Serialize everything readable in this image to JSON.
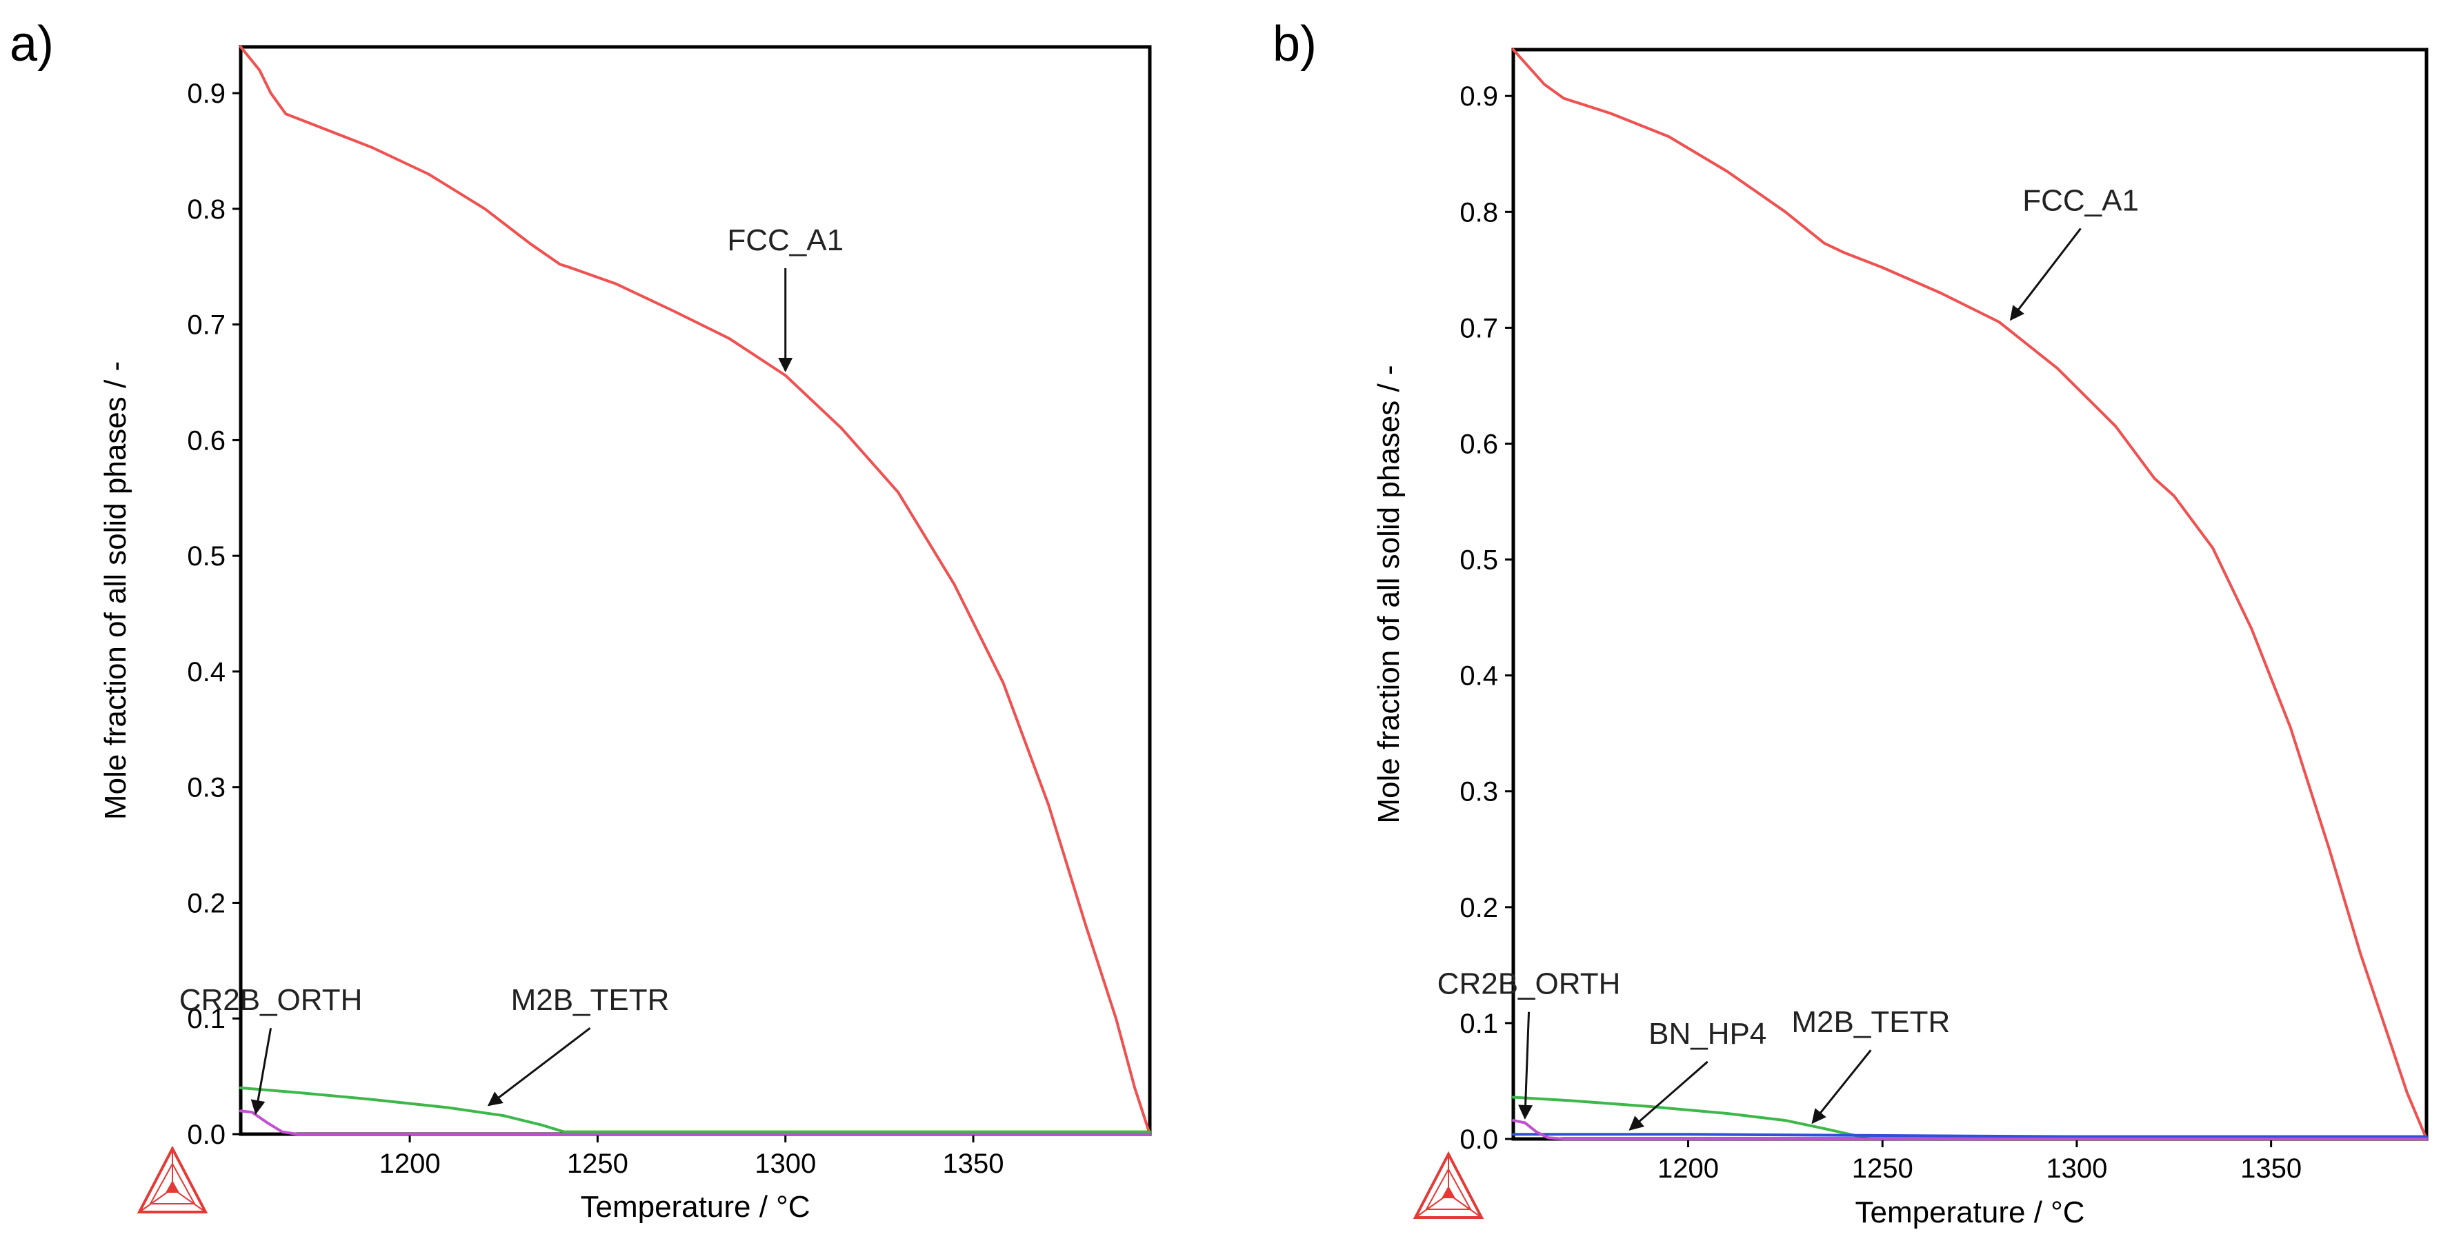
{
  "chart_data": [
    {
      "panel_label": "a)",
      "type": "line",
      "xlabel": "Temperature / °C",
      "ylabel": "Mole fraction of all solid phases / -",
      "xlim": [
        1155,
        1397
      ],
      "ylim": [
        0,
        0.94
      ],
      "xticks": [
        1200,
        1250,
        1300,
        1350
      ],
      "xtick_labels": [
        "1200",
        "1250",
        "1300",
        "1350"
      ],
      "yticks": [
        0,
        0.1,
        0.2,
        0.3,
        0.4,
        0.5,
        0.6,
        0.7,
        0.8,
        0.9
      ],
      "ytick_labels": [
        "0.0",
        "0.1",
        "0.2",
        "0.3",
        "0.4",
        "0.5",
        "0.6",
        "0.7",
        "0.8",
        "0.9"
      ],
      "series": [
        {
          "name": "FCC_A1",
          "color": "#f05050",
          "x": [
            1155,
            1160,
            1163,
            1167,
            1175,
            1190,
            1205,
            1220,
            1232,
            1240,
            1242,
            1255,
            1270,
            1285,
            1300,
            1315,
            1330,
            1345,
            1358,
            1370,
            1380,
            1388,
            1393,
            1397
          ],
          "y": [
            0.94,
            0.92,
            0.9,
            0.882,
            0.872,
            0.853,
            0.83,
            0.8,
            0.77,
            0.752,
            0.75,
            0.735,
            0.712,
            0.688,
            0.656,
            0.61,
            0.555,
            0.475,
            0.39,
            0.285,
            0.18,
            0.1,
            0.04,
            0.0
          ]
        },
        {
          "name": "M2B_TETR",
          "color": "#3cb84a",
          "x": [
            1155,
            1170,
            1190,
            1210,
            1225,
            1235,
            1241,
            1250,
            1300,
            1350,
            1397
          ],
          "y": [
            0.04,
            0.036,
            0.03,
            0.023,
            0.016,
            0.008,
            0.002,
            0.002,
            0.002,
            0.002,
            0.002
          ]
        },
        {
          "name": "CR2B_ORTH",
          "color": "#c050d0",
          "x": [
            1155,
            1158,
            1162,
            1166,
            1170,
            1200,
            1300,
            1397
          ],
          "y": [
            0.02,
            0.019,
            0.01,
            0.002,
            0.0,
            0.0,
            0.0,
            0.0
          ]
        }
      ],
      "annotations": [
        {
          "text": "FCC_A1",
          "tx": 1300,
          "ty": 0.757,
          "ax": 1300,
          "ay": 0.66
        },
        {
          "text": "M2B_TETR",
          "tx": 1248,
          "ty": 0.1,
          "ax": 1221,
          "ay": 0.025
        },
        {
          "text": "CR2B_ORTH",
          "tx": 1163,
          "ty": 0.1,
          "ax": 1159,
          "ay": 0.018
        }
      ]
    },
    {
      "panel_label": "b)",
      "type": "line",
      "xlabel": "Temperature / °C",
      "ylabel": "Mole fraction of all solid phases / -",
      "xlim": [
        1155,
        1390
      ],
      "ylim": [
        0,
        0.94
      ],
      "xticks": [
        1200,
        1250,
        1300,
        1350
      ],
      "xtick_labels": [
        "1200",
        "1250",
        "1300",
        "1350"
      ],
      "yticks": [
        0,
        0.1,
        0.2,
        0.3,
        0.4,
        0.5,
        0.6,
        0.7,
        0.8,
        0.9
      ],
      "ytick_labels": [
        "0.0",
        "0.1",
        "0.2",
        "0.3",
        "0.4",
        "0.5",
        "0.6",
        "0.7",
        "0.8",
        "0.9"
      ],
      "series": [
        {
          "name": "FCC_A1",
          "color": "#f05050",
          "x": [
            1155,
            1159,
            1163,
            1168,
            1180,
            1195,
            1210,
            1225,
            1235,
            1240,
            1250,
            1265,
            1280,
            1295,
            1310,
            1320,
            1325,
            1335,
            1345,
            1355,
            1365,
            1373,
            1380,
            1385,
            1390
          ],
          "y": [
            0.94,
            0.925,
            0.91,
            0.898,
            0.885,
            0.865,
            0.835,
            0.8,
            0.773,
            0.765,
            0.752,
            0.73,
            0.705,
            0.665,
            0.615,
            0.57,
            0.555,
            0.51,
            0.44,
            0.355,
            0.25,
            0.16,
            0.09,
            0.04,
            0.0
          ]
        },
        {
          "name": "M2B_TETR",
          "color": "#3cb84a",
          "x": [
            1155,
            1170,
            1190,
            1210,
            1225,
            1235,
            1243,
            1250,
            1300,
            1350,
            1390
          ],
          "y": [
            0.036,
            0.033,
            0.028,
            0.022,
            0.016,
            0.009,
            0.003,
            0.002,
            0.002,
            0.002,
            0.002
          ]
        },
        {
          "name": "BN_HP4",
          "color": "#3050d8",
          "x": [
            1155,
            1160,
            1170,
            1200,
            1250,
            1300,
            1350,
            1390
          ],
          "y": [
            0.004,
            0.004,
            0.004,
            0.004,
            0.003,
            0.002,
            0.002,
            0.002
          ]
        },
        {
          "name": "CR2B_ORTH",
          "color": "#c050d0",
          "x": [
            1155,
            1158,
            1161,
            1164,
            1168,
            1200,
            1300,
            1390
          ],
          "y": [
            0.016,
            0.014,
            0.006,
            0.001,
            0.0,
            0.0,
            0.0,
            0.0
          ]
        }
      ],
      "annotations": [
        {
          "text": "FCC_A1",
          "tx": 1301,
          "ty": 0.794,
          "ax": 1283,
          "ay": 0.707
        },
        {
          "text": "M2B_TETR",
          "tx": 1247,
          "ty": 0.085,
          "ax": 1232,
          "ay": 0.014
        },
        {
          "text": "BN_HP4",
          "tx": 1205,
          "ty": 0.075,
          "ax": 1185,
          "ay": 0.008
        },
        {
          "text": "CR2B_ORTH",
          "tx": 1159,
          "ty": 0.118,
          "ax": 1158,
          "ay": 0.018
        }
      ]
    }
  ],
  "logo_color": "#e53935"
}
